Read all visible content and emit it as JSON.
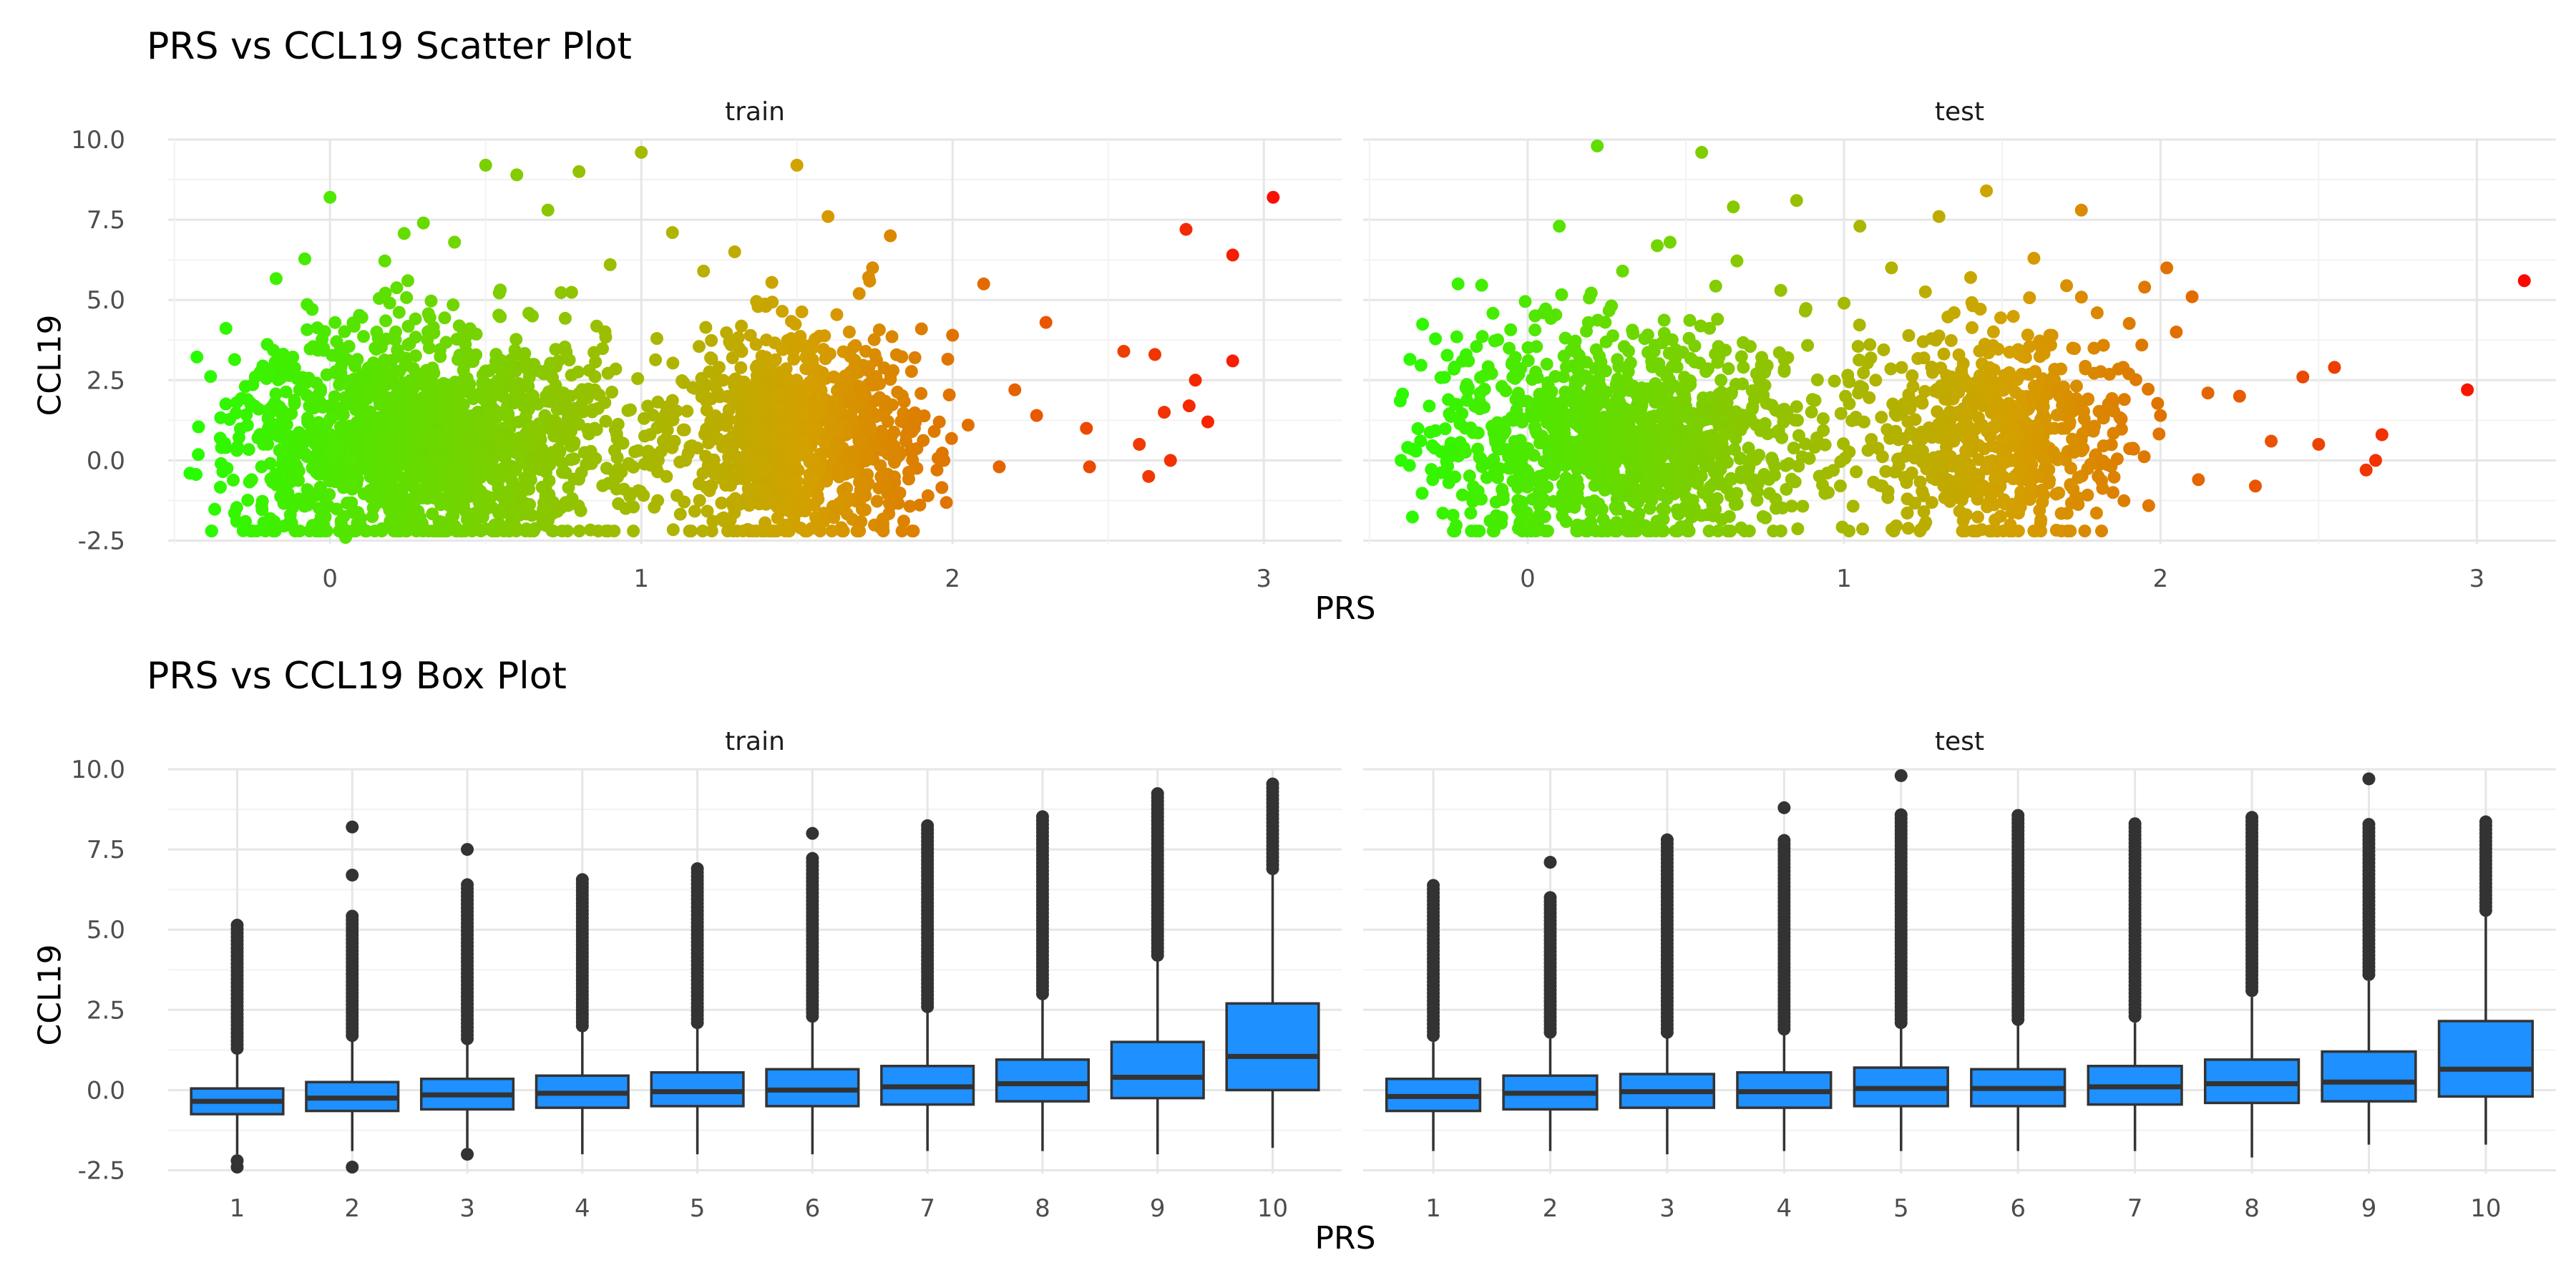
{
  "chart_data": [
    {
      "type": "scatter",
      "title": "PRS vs CCL19 Scatter Plot",
      "xlabel": "PRS",
      "ylabel": "CCL19",
      "xlim": [
        -0.52,
        3.25
      ],
      "ylim": [
        -2.6,
        10.0
      ],
      "xticks": [
        "0",
        "1",
        "2",
        "3"
      ],
      "yticks": [
        "-2.5",
        "0.0",
        "2.5",
        "5.0",
        "7.5",
        "10.0"
      ],
      "facets": [
        "train",
        "test"
      ],
      "color_scale": {
        "low": "#22ff00",
        "mid": "#d4a000",
        "high": "#ff0000",
        "range": [
          -0.5,
          3.2
        ]
      },
      "grid": true,
      "series": [
        {
          "facet": "train",
          "points": [
            [
              -0.45,
              -0.4
            ],
            [
              -0.35,
              -0.1
            ],
            [
              -0.3,
              1.8
            ],
            [
              -0.2,
              0.5
            ],
            [
              -0.1,
              -1.2
            ],
            [
              0.0,
              8.2
            ],
            [
              0.05,
              -2.4
            ],
            [
              0.1,
              2.6
            ],
            [
              0.15,
              4.0
            ],
            [
              0.2,
              -0.8
            ],
            [
              0.25,
              5.6
            ],
            [
              0.3,
              7.4
            ],
            [
              0.35,
              -1.9
            ],
            [
              0.4,
              6.8
            ],
            [
              0.45,
              3.2
            ],
            [
              0.5,
              9.2
            ],
            [
              0.55,
              -0.5
            ],
            [
              0.6,
              8.9
            ],
            [
              0.65,
              4.5
            ],
            [
              0.7,
              7.8
            ],
            [
              0.75,
              2.1
            ],
            [
              0.8,
              9.0
            ],
            [
              0.85,
              1.0
            ],
            [
              0.9,
              6.1
            ],
            [
              0.95,
              -1.5
            ],
            [
              1.0,
              9.6
            ],
            [
              1.05,
              3.8
            ],
            [
              1.1,
              7.1
            ],
            [
              1.15,
              0.2
            ],
            [
              1.2,
              5.9
            ],
            [
              1.25,
              2.9
            ],
            [
              1.3,
              6.5
            ],
            [
              1.35,
              -0.9
            ],
            [
              1.4,
              4.8
            ],
            [
              1.45,
              1.6
            ],
            [
              1.5,
              9.2
            ],
            [
              1.55,
              3.5
            ],
            [
              1.6,
              7.6
            ],
            [
              1.65,
              -1.2
            ],
            [
              1.7,
              5.2
            ],
            [
              1.75,
              2.4
            ],
            [
              1.8,
              7.0
            ],
            [
              1.85,
              0.6
            ],
            [
              1.9,
              4.1
            ],
            [
              1.95,
              -0.3
            ],
            [
              2.0,
              3.9
            ],
            [
              2.05,
              1.1
            ],
            [
              2.1,
              5.5
            ],
            [
              2.15,
              -0.2
            ],
            [
              2.2,
              2.2
            ],
            [
              2.27,
              1.4
            ],
            [
              2.3,
              4.3
            ],
            [
              2.43,
              1.0
            ],
            [
              2.44,
              -0.2
            ],
            [
              2.55,
              3.4
            ],
            [
              2.6,
              0.5
            ],
            [
              2.63,
              -0.5
            ],
            [
              2.65,
              3.3
            ],
            [
              2.68,
              1.5
            ],
            [
              2.7,
              0.0
            ],
            [
              2.75,
              7.2
            ],
            [
              2.76,
              1.7
            ],
            [
              2.78,
              2.5
            ],
            [
              2.82,
              1.2
            ],
            [
              2.9,
              6.4
            ],
            [
              2.9,
              3.1
            ],
            [
              3.03,
              8.2
            ]
          ]
        },
        {
          "facet": "test",
          "points": [
            [
              -0.4,
              0.0
            ],
            [
              -0.3,
              -0.6
            ],
            [
              -0.22,
              5.5
            ],
            [
              -0.15,
              2.1
            ],
            [
              -0.1,
              -1.3
            ],
            [
              -0.05,
              3.0
            ],
            [
              0.0,
              -1.8
            ],
            [
              0.05,
              4.6
            ],
            [
              0.1,
              7.3
            ],
            [
              0.15,
              -0.6
            ],
            [
              0.2,
              1.4
            ],
            [
              0.22,
              9.8
            ],
            [
              0.3,
              5.9
            ],
            [
              0.35,
              -1.9
            ],
            [
              0.4,
              3.4
            ],
            [
              0.45,
              6.8
            ],
            [
              0.5,
              0.9
            ],
            [
              0.55,
              9.6
            ],
            [
              0.6,
              4.4
            ],
            [
              0.65,
              7.9
            ],
            [
              0.7,
              -0.2
            ],
            [
              0.75,
              2.8
            ],
            [
              0.8,
              5.3
            ],
            [
              0.85,
              8.1
            ],
            [
              0.9,
              1.9
            ],
            [
              0.95,
              -1.0
            ],
            [
              1.0,
              4.9
            ],
            [
              1.05,
              7.3
            ],
            [
              1.1,
              2.5
            ],
            [
              1.15,
              6.0
            ],
            [
              1.2,
              -1.2
            ],
            [
              1.25,
              3.7
            ],
            [
              1.3,
              7.6
            ],
            [
              1.35,
              0.8
            ],
            [
              1.4,
              5.7
            ],
            [
              1.45,
              8.4
            ],
            [
              1.5,
              2.2
            ],
            [
              1.55,
              -1.5
            ],
            [
              1.6,
              6.3
            ],
            [
              1.65,
              3.9
            ],
            [
              1.7,
              1.0
            ],
            [
              1.75,
              7.8
            ],
            [
              1.8,
              4.6
            ],
            [
              1.85,
              -1.0
            ],
            [
              1.9,
              2.7
            ],
            [
              1.95,
              5.4
            ],
            [
              2.0,
              1.4
            ],
            [
              2.02,
              6.0
            ],
            [
              2.05,
              4.0
            ],
            [
              2.1,
              5.1
            ],
            [
              2.12,
              -0.6
            ],
            [
              2.15,
              2.1
            ],
            [
              2.25,
              2.0
            ],
            [
              2.3,
              -0.8
            ],
            [
              2.35,
              0.6
            ],
            [
              2.45,
              2.6
            ],
            [
              2.5,
              0.5
            ],
            [
              2.55,
              2.9
            ],
            [
              2.65,
              -0.3
            ],
            [
              2.68,
              0.0
            ],
            [
              2.7,
              0.8
            ],
            [
              2.97,
              2.2
            ],
            [
              3.15,
              5.6
            ]
          ]
        }
      ]
    },
    {
      "type": "box",
      "title": "PRS vs CCL19 Box Plot",
      "xlabel": "PRS",
      "ylabel": "CCL19",
      "ylim": [
        -2.6,
        10.0
      ],
      "categories": [
        "1",
        "2",
        "3",
        "4",
        "5",
        "6",
        "7",
        "8",
        "9",
        "10"
      ],
      "yticks": [
        "-2.5",
        "0.0",
        "2.5",
        "5.0",
        "7.5",
        "10.0"
      ],
      "facets": [
        "train",
        "test"
      ],
      "box_color": "#1e90ff",
      "grid": true,
      "series": [
        {
          "facet": "train",
          "boxes": [
            {
              "lw": -2.0,
              "q1": -0.75,
              "med": -0.35,
              "q3": 0.05,
              "uw": 1.2,
              "out_lo": [
                -2.4,
                -2.2
              ],
              "out_hi_from": 1.3,
              "out_hi_to": 5.2
            },
            {
              "lw": -1.9,
              "q1": -0.65,
              "med": -0.25,
              "q3": 0.25,
              "uw": 1.6,
              "out_lo": [
                -2.4
              ],
              "out_hi_from": 1.7,
              "out_hi_to": 5.5,
              "extra": [
                6.7,
                8.2
              ]
            },
            {
              "lw": -1.8,
              "q1": -0.6,
              "med": -0.15,
              "q3": 0.35,
              "uw": 1.6,
              "out_lo": [
                -2.0
              ],
              "out_hi_from": 1.6,
              "out_hi_to": 6.5,
              "extra": [
                7.5
              ]
            },
            {
              "lw": -2.0,
              "q1": -0.55,
              "med": -0.1,
              "q3": 0.45,
              "uw": 1.9,
              "out_lo": [],
              "out_hi_from": 2.0,
              "out_hi_to": 6.6
            },
            {
              "lw": -2.0,
              "q1": -0.5,
              "med": -0.05,
              "q3": 0.55,
              "uw": 2.1,
              "out_lo": [],
              "out_hi_from": 2.1,
              "out_hi_to": 7.0
            },
            {
              "lw": -2.0,
              "q1": -0.5,
              "med": 0.0,
              "q3": 0.65,
              "uw": 2.3,
              "out_lo": [],
              "out_hi_from": 2.3,
              "out_hi_to": 7.3,
              "extra": [
                8.0
              ]
            },
            {
              "lw": -1.9,
              "q1": -0.45,
              "med": 0.1,
              "q3": 0.75,
              "uw": 2.5,
              "out_lo": [],
              "out_hi_from": 2.6,
              "out_hi_to": 8.3
            },
            {
              "lw": -1.9,
              "q1": -0.35,
              "med": 0.2,
              "q3": 0.95,
              "uw": 2.9,
              "out_lo": [],
              "out_hi_from": 3.0,
              "out_hi_to": 8.6
            },
            {
              "lw": -2.0,
              "q1": -0.25,
              "med": 0.4,
              "q3": 1.5,
              "uw": 4.0,
              "out_lo": [],
              "out_hi_from": 4.2,
              "out_hi_to": 9.3
            },
            {
              "lw": -1.8,
              "q1": 0.0,
              "med": 1.05,
              "q3": 2.7,
              "uw": 6.7,
              "out_lo": [],
              "out_hi_from": 6.9,
              "out_hi_to": 9.6
            }
          ]
        },
        {
          "facet": "test",
          "boxes": [
            {
              "lw": -1.9,
              "q1": -0.65,
              "med": -0.2,
              "q3": 0.35,
              "uw": 1.5,
              "out_lo": [],
              "out_hi_from": 1.7,
              "out_hi_to": 6.4
            },
            {
              "lw": -1.9,
              "q1": -0.6,
              "med": -0.1,
              "q3": 0.45,
              "uw": 1.6,
              "out_lo": [],
              "out_hi_from": 1.8,
              "out_hi_to": 6.1,
              "extra": [
                7.1
              ]
            },
            {
              "lw": -2.0,
              "q1": -0.55,
              "med": -0.05,
              "q3": 0.5,
              "uw": 1.7,
              "out_lo": [],
              "out_hi_from": 1.8,
              "out_hi_to": 7.8
            },
            {
              "lw": -1.9,
              "q1": -0.55,
              "med": -0.05,
              "q3": 0.55,
              "uw": 1.8,
              "out_lo": [],
              "out_hi_from": 1.9,
              "out_hi_to": 7.8,
              "extra": [
                8.8
              ]
            },
            {
              "lw": -1.9,
              "q1": -0.5,
              "med": 0.05,
              "q3": 0.7,
              "uw": 2.0,
              "out_lo": [],
              "out_hi_from": 2.1,
              "out_hi_to": 8.6,
              "extra": [
                9.8
              ]
            },
            {
              "lw": -1.9,
              "q1": -0.5,
              "med": 0.05,
              "q3": 0.65,
              "uw": 2.1,
              "out_lo": [],
              "out_hi_from": 2.2,
              "out_hi_to": 8.6
            },
            {
              "lw": -1.9,
              "q1": -0.45,
              "med": 0.1,
              "q3": 0.75,
              "uw": 2.1,
              "out_lo": [],
              "out_hi_from": 2.3,
              "out_hi_to": 8.3
            },
            {
              "lw": -2.1,
              "q1": -0.4,
              "med": 0.2,
              "q3": 0.95,
              "uw": 2.9,
              "out_lo": [],
              "out_hi_from": 3.1,
              "out_hi_to": 8.5
            },
            {
              "lw": -1.7,
              "q1": -0.35,
              "med": 0.25,
              "q3": 1.2,
              "uw": 3.4,
              "out_lo": [],
              "out_hi_from": 3.6,
              "out_hi_to": 8.3,
              "extra": [
                9.7
              ]
            },
            {
              "lw": -1.7,
              "q1": -0.2,
              "med": 0.65,
              "q3": 2.15,
              "uw": 5.5,
              "out_lo": [],
              "out_hi_from": 5.6,
              "out_hi_to": 8.4
            }
          ]
        }
      ]
    }
  ]
}
